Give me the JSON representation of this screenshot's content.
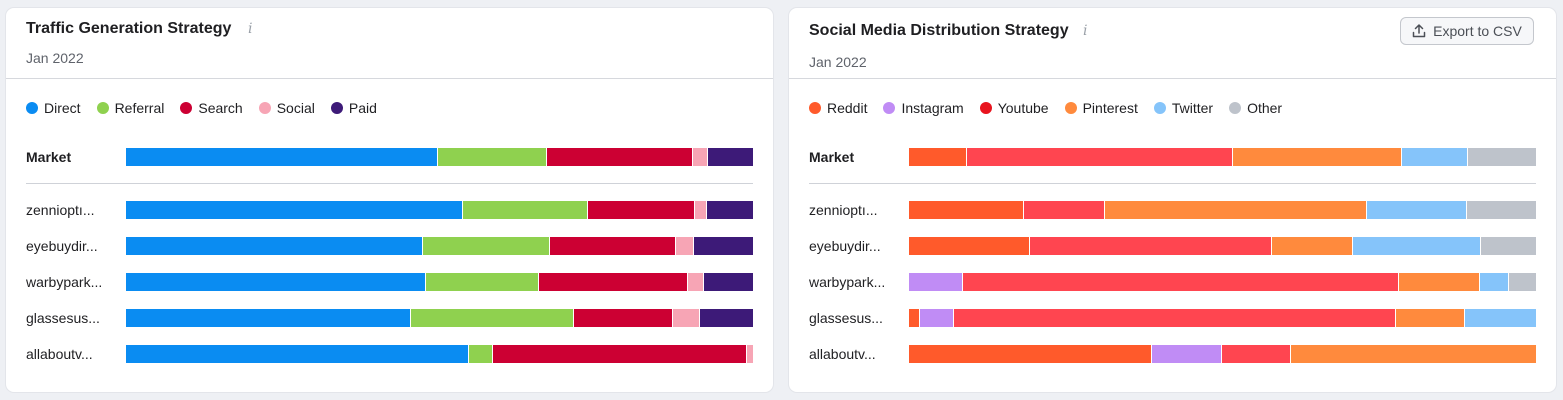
{
  "left": {
    "title": "Traffic Generation Strategy",
    "info_icon": "i",
    "date": "Jan 2022",
    "legend": [
      {
        "label": "Direct",
        "color": "#0a8cf2"
      },
      {
        "label": "Referral",
        "color": "#8fd14f"
      },
      {
        "label": "Search",
        "color": "#cc0033"
      },
      {
        "label": "Social",
        "color": "#f7a5b5"
      },
      {
        "label": "Paid",
        "color": "#3d1a78"
      }
    ],
    "rows": [
      {
        "label": "Market",
        "market": true,
        "values": [
          49.7,
          17.5,
          23.3,
          2.4,
          7.1
        ]
      },
      {
        "label": "zennioptı...",
        "values": [
          53.8,
          19.9,
          17.1,
          1.9,
          7.3
        ]
      },
      {
        "label": "eyebuydir...",
        "values": [
          47.3,
          20.4,
          20.1,
          2.8,
          9.4
        ]
      },
      {
        "label": "warbypark...",
        "values": [
          47.9,
          17.9,
          23.8,
          2.6,
          7.8
        ]
      },
      {
        "label": "glassesus...",
        "values": [
          45.4,
          26.0,
          15.8,
          4.3,
          8.5
        ]
      },
      {
        "label": "allaboutv...",
        "values": [
          54.7,
          3.8,
          40.6,
          0.9,
          0
        ]
      }
    ]
  },
  "right": {
    "title": "Social Media Distribution Strategy",
    "info_icon": "i",
    "date": "Jan 2022",
    "export_label": "Export to CSV",
    "legend": [
      {
        "label": "Reddit",
        "color": "#ff5a2b"
      },
      {
        "label": "Instagram",
        "color": "#c08cf5"
      },
      {
        "label": "Youtube",
        "color": "#e8141e"
      },
      {
        "label": "Pinterest",
        "color": "#ff8a3d"
      },
      {
        "label": "Twitter",
        "color": "#85c4fa"
      },
      {
        "label": "Other",
        "color": "#bec3cb"
      }
    ],
    "segment_colors": [
      "#ff5a2b",
      "#c08cf5",
      "#ff4550",
      "#ff8a3d",
      "#85c4fa",
      "#bec3cb"
    ],
    "rows": [
      {
        "label": "Market",
        "market": true,
        "values": [
          9.3,
          0,
          42.4,
          27.0,
          10.4,
          10.9
        ]
      },
      {
        "label": "zennioptı...",
        "values": [
          18.3,
          0,
          12.8,
          41.6,
          15.9,
          11.0
        ]
      },
      {
        "label": "eyebuydir...",
        "values": [
          19.3,
          0,
          38.6,
          12.9,
          20.4,
          8.8
        ]
      },
      {
        "label": "warbypark...",
        "values": [
          0,
          8.6,
          69.6,
          12.8,
          4.7,
          4.3
        ]
      },
      {
        "label": "glassesus...",
        "values": [
          1.7,
          5.5,
          70.4,
          11.1,
          11.3,
          0
        ]
      },
      {
        "label": "allaboutv...",
        "values": [
          38.8,
          11.1,
          11.0,
          39.1,
          0,
          0
        ]
      }
    ]
  }
}
